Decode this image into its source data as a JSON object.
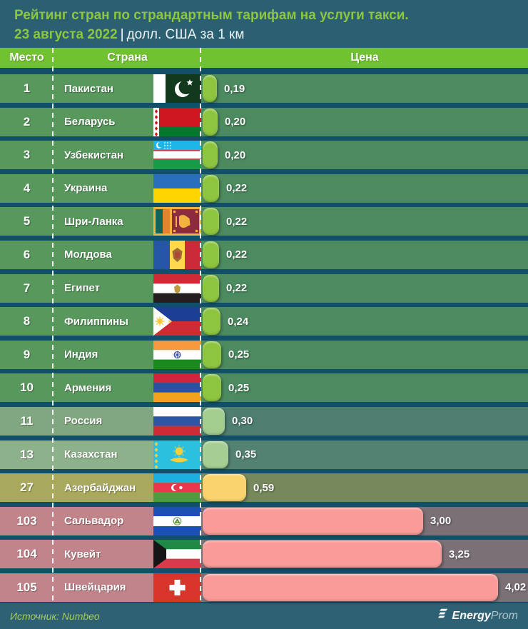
{
  "header": {
    "title": "Рейтинг стран по страндартным тарифам на услуги такси.",
    "date": "23 августа 2022",
    "pipe": "|",
    "subtitle": "долл. США за 1 км"
  },
  "columns": {
    "rank": "Место",
    "country": "Страна",
    "price": "Цена"
  },
  "rows": [
    {
      "rank": "1",
      "country": "Пакистан",
      "value": 0.19,
      "price_label": "0,19",
      "flag": "pakistan",
      "tier": "green"
    },
    {
      "rank": "2",
      "country": "Беларусь",
      "value": 0.2,
      "price_label": "0,20",
      "flag": "belarus",
      "tier": "green"
    },
    {
      "rank": "3",
      "country": "Узбекистан",
      "value": 0.2,
      "price_label": "0,20",
      "flag": "uzbekistan",
      "tier": "green"
    },
    {
      "rank": "4",
      "country": "Украина",
      "value": 0.22,
      "price_label": "0,22",
      "flag": "ukraine",
      "tier": "green"
    },
    {
      "rank": "5",
      "country": "Шри-Ланка",
      "value": 0.22,
      "price_label": "0,22",
      "flag": "srilanka",
      "tier": "green"
    },
    {
      "rank": "6",
      "country": "Молдова",
      "value": 0.22,
      "price_label": "0,22",
      "flag": "moldova",
      "tier": "green"
    },
    {
      "rank": "7",
      "country": "Египет",
      "value": 0.22,
      "price_label": "0,22",
      "flag": "egypt",
      "tier": "green"
    },
    {
      "rank": "8",
      "country": "Филиппины",
      "value": 0.24,
      "price_label": "0,24",
      "flag": "philippines",
      "tier": "green"
    },
    {
      "rank": "9",
      "country": "Индия",
      "value": 0.25,
      "price_label": "0,25",
      "flag": "india",
      "tier": "green"
    },
    {
      "rank": "10",
      "country": "Армения",
      "value": 0.25,
      "price_label": "0,25",
      "flag": "armenia",
      "tier": "green"
    },
    {
      "rank": "11",
      "country": "Россия",
      "value": 0.3,
      "price_label": "0,30",
      "flag": "russia",
      "tier": "sage"
    },
    {
      "rank": "13",
      "country": "Казахстан",
      "value": 0.35,
      "price_label": "0,35",
      "flag": "kazakhstan",
      "tier": "sage_light"
    },
    {
      "rank": "27",
      "country": "Азербайджан",
      "value": 0.59,
      "price_label": "0,59",
      "flag": "azerbaijan",
      "tier": "olive"
    },
    {
      "rank": "103",
      "country": "Сальвадор",
      "value": 3.0,
      "price_label": "3,00",
      "flag": "elsalvador",
      "tier": "pink"
    },
    {
      "rank": "104",
      "country": "Кувейт",
      "value": 3.25,
      "price_label": "3,25",
      "flag": "kuwait",
      "tier": "pink"
    },
    {
      "rank": "105",
      "country": "Швейцария",
      "value": 4.02,
      "price_label": "4,02",
      "flag": "switzerland",
      "tier": "pink"
    }
  ],
  "footer": {
    "source": "Источник: Numbeo",
    "brand_bold": "Energy",
    "brand_light": "Prom"
  },
  "palette": {
    "page_bg": "#124F68",
    "header_bg": "#2A6072",
    "column_header_bg": "#71C230",
    "title_green": "#8DC63F",
    "footer_bg": "#2E6173",
    "source_text": "#A6CB5C",
    "tiers": {
      "green": {
        "row": "#58985C",
        "price_area": "#4C8A60",
        "bar": "#8DC53F"
      },
      "sage": {
        "row": "#80A77F",
        "price_area": "#4E7E70",
        "bar": "#A3CC8F"
      },
      "sage_light": {
        "row": "#8DB28B",
        "price_area": "#538273",
        "bar": "#A6CE92"
      },
      "olive": {
        "row": "#A9A95D",
        "price_area": "#76885C",
        "bar": "#FBD36C"
      },
      "pink": {
        "row": "#C1848A",
        "price_area": "#7A7076",
        "bar": "#F99B98"
      }
    }
  },
  "chart_data": {
    "type": "bar",
    "orientation": "horizontal",
    "title": "Рейтинг стран по страндартным тарифам на услуги такси. 23 августа 2022",
    "unit": "долл. США за 1 км",
    "categories": [
      "Пакистан",
      "Беларусь",
      "Узбекистан",
      "Украина",
      "Шри-Ланка",
      "Молдова",
      "Египет",
      "Филиппины",
      "Индия",
      "Армения",
      "Россия",
      "Казахстан",
      "Азербайджан",
      "Сальвадор",
      "Кувейт",
      "Швейцария"
    ],
    "ranks": [
      1,
      2,
      3,
      4,
      5,
      6,
      7,
      8,
      9,
      10,
      11,
      13,
      27,
      103,
      104,
      105
    ],
    "values": [
      0.19,
      0.2,
      0.2,
      0.22,
      0.22,
      0.22,
      0.22,
      0.24,
      0.25,
      0.25,
      0.3,
      0.35,
      0.59,
      3.0,
      3.25,
      4.02
    ],
    "xlim": [
      0,
      4.4
    ],
    "legend": false,
    "source": "Numbeo"
  }
}
